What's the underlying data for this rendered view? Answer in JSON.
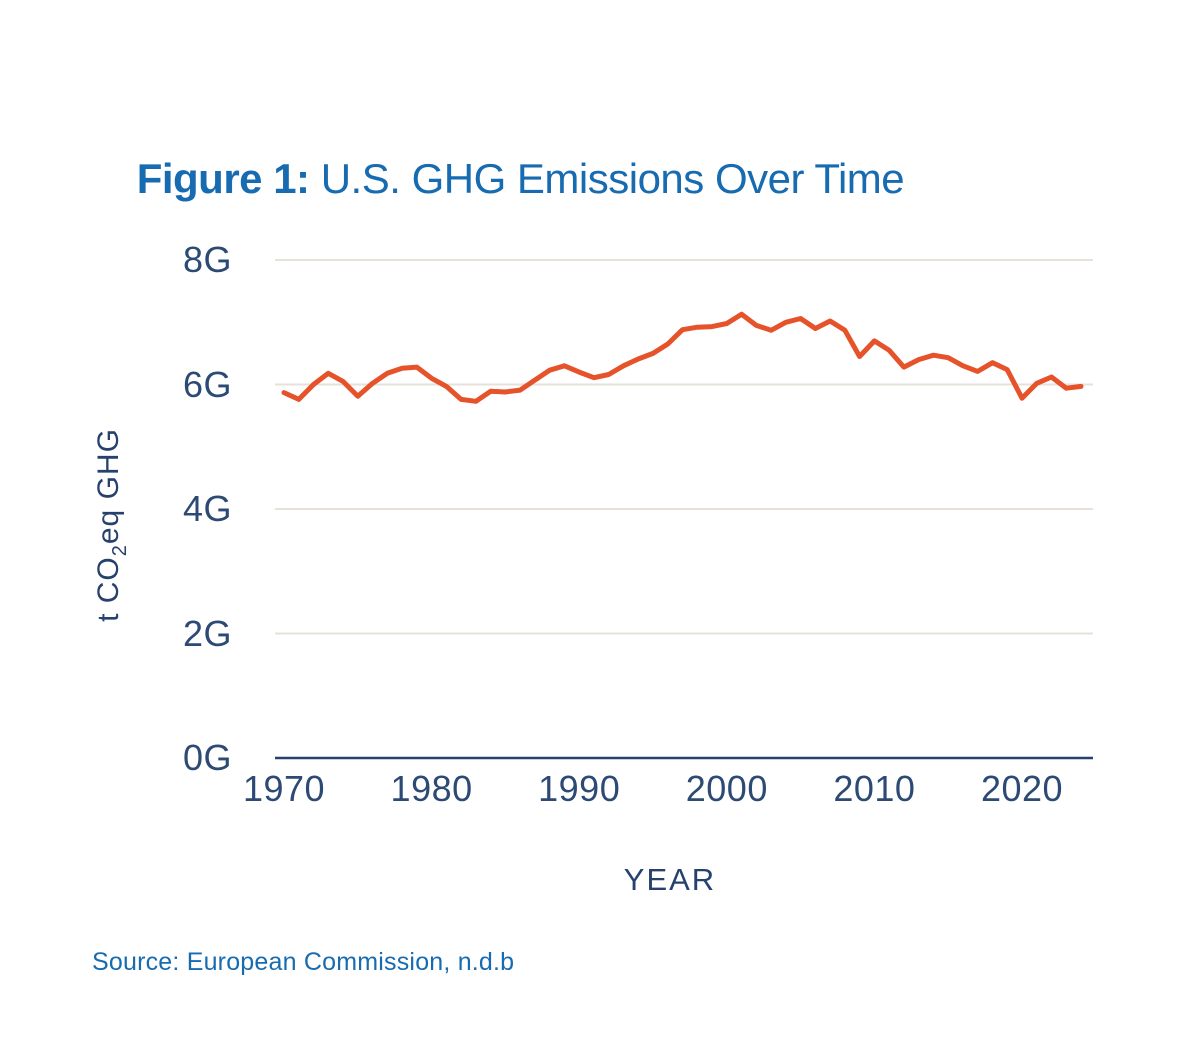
{
  "figure": {
    "title_prefix": "Figure 1:",
    "title_text": " U.S. GHG Emissions Over Time",
    "source": "Source: European Commission, n.d.b"
  },
  "colors": {
    "title_blue": "#176bb0",
    "axis_navy": "#27416d",
    "tick_navy": "#2c4a74",
    "gridline_beige": "#e6e2d8",
    "line_orange": "#e6532b",
    "background": "#ffffff"
  },
  "chart_data": {
    "type": "line",
    "title": "U.S. GHG Emissions Over Time",
    "xlabel": "YEAR",
    "ylabel": "t CO2eq GHG",
    "ylabel_parts": {
      "pre": "t CO",
      "sub": "2",
      "post": "eq GHG"
    },
    "series_name": "U.S. GHG emissions",
    "x": [
      1970,
      1971,
      1972,
      1973,
      1974,
      1975,
      1976,
      1977,
      1978,
      1979,
      1980,
      1981,
      1982,
      1983,
      1984,
      1985,
      1986,
      1987,
      1988,
      1989,
      1990,
      1991,
      1992,
      1993,
      1994,
      1995,
      1996,
      1997,
      1998,
      1999,
      2000,
      2001,
      2002,
      2003,
      2004,
      2005,
      2006,
      2007,
      2008,
      2009,
      2010,
      2011,
      2012,
      2013,
      2014,
      2015,
      2016,
      2017,
      2018,
      2019,
      2020,
      2021,
      2022,
      2023,
      2024
    ],
    "values": [
      5.87,
      5.76,
      6.0,
      6.18,
      6.05,
      5.81,
      6.02,
      6.18,
      6.26,
      6.28,
      6.1,
      5.97,
      5.76,
      5.73,
      5.89,
      5.88,
      5.91,
      6.07,
      6.23,
      6.3,
      6.2,
      6.11,
      6.16,
      6.3,
      6.41,
      6.5,
      6.65,
      6.88,
      6.92,
      6.93,
      6.98,
      7.13,
      6.95,
      6.87,
      7.0,
      7.06,
      6.9,
      7.02,
      6.87,
      6.45,
      6.7,
      6.55,
      6.28,
      6.4,
      6.47,
      6.43,
      6.3,
      6.21,
      6.35,
      6.24,
      5.78,
      6.02,
      6.12,
      5.94,
      5.97
    ],
    "y_tick_labels": [
      "0G",
      "2G",
      "4G",
      "6G",
      "8G"
    ],
    "y_tick_values": [
      0,
      2,
      4,
      6,
      8
    ],
    "x_tick_labels": [
      "1970",
      "1980",
      "1990",
      "2000",
      "2010",
      "2020"
    ],
    "x_tick_values": [
      1970,
      1980,
      1990,
      2000,
      2010,
      2020
    ],
    "ylim": [
      0,
      8
    ],
    "xlim": [
      1970,
      2025
    ],
    "grid": true,
    "legend": "none",
    "line_color": "#e6532b"
  }
}
